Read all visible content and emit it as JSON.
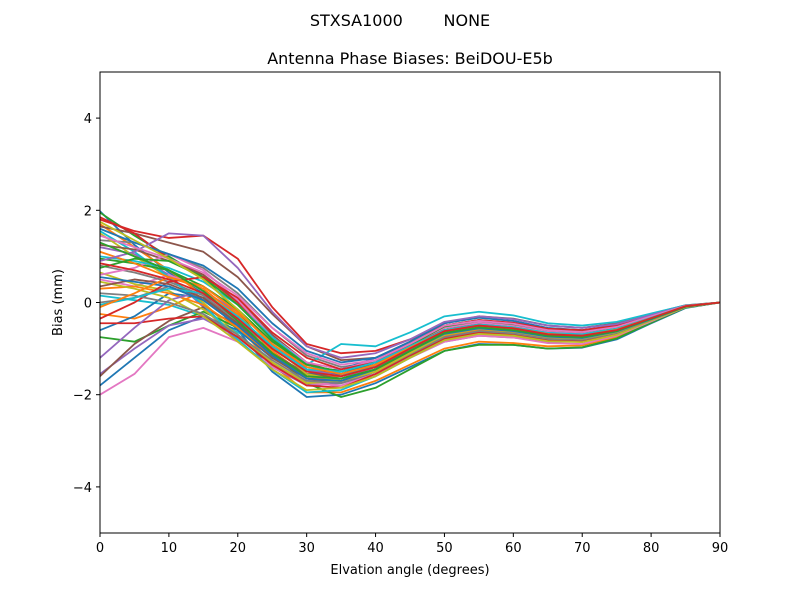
{
  "chart_data": {
    "type": "line",
    "suptitle": "STXSA1000        NONE",
    "title": "Antenna Phase Biases: BeiDOU-E5b",
    "xlabel": "Elvation angle (degrees)",
    "ylabel": "Bias (mm)",
    "xlim": [
      0,
      90
    ],
    "ylim": [
      -5,
      5
    ],
    "xticks": [
      0,
      10,
      20,
      30,
      40,
      50,
      60,
      70,
      80,
      90
    ],
    "yticks": [
      -4,
      -2,
      0,
      2,
      4
    ],
    "grid": false,
    "legend": "none",
    "x": [
      0,
      5,
      10,
      15,
      20,
      25,
      30,
      35,
      40,
      45,
      50,
      55,
      60,
      65,
      70,
      75,
      80,
      85,
      90
    ],
    "series": [
      {
        "color": "#1f77b4",
        "values": [
          1.98,
          1.25,
          0.65,
          0.2,
          -0.6,
          -1.5,
          -2.05,
          -2.0,
          -1.75,
          -1.4,
          -1.05,
          -0.9,
          -0.92,
          -1.0,
          -0.98,
          -0.8,
          -0.45,
          -0.12,
          0.0
        ]
      },
      {
        "color": "#ff7f0e",
        "values": [
          1.7,
          1.2,
          0.7,
          0.15,
          -0.5,
          -1.35,
          -1.95,
          -1.95,
          -1.7,
          -1.35,
          -1.0,
          -0.85,
          -0.88,
          -0.95,
          -0.93,
          -0.75,
          -0.42,
          -0.1,
          0.0
        ]
      },
      {
        "color": "#2ca02c",
        "values": [
          1.95,
          1.45,
          1.0,
          0.55,
          -0.2,
          -1.1,
          -1.75,
          -2.05,
          -1.85,
          -1.45,
          -1.05,
          -0.92,
          -0.92,
          -1.0,
          -0.97,
          -0.78,
          -0.44,
          -0.11,
          0.0
        ]
      },
      {
        "color": "#d62728",
        "values": [
          1.8,
          1.55,
          1.4,
          1.45,
          0.95,
          -0.1,
          -0.9,
          -1.1,
          -1.05,
          -0.8,
          -0.5,
          -0.4,
          -0.45,
          -0.6,
          -0.65,
          -0.55,
          -0.32,
          -0.08,
          0.0
        ]
      },
      {
        "color": "#9467bd",
        "values": [
          1.2,
          1.05,
          0.6,
          -0.1,
          -0.85,
          -1.4,
          -1.8,
          -1.75,
          -1.55,
          -1.2,
          -0.85,
          -0.72,
          -0.76,
          -0.85,
          -0.84,
          -0.68,
          -0.38,
          -0.09,
          0.0
        ]
      },
      {
        "color": "#8c564b",
        "values": [
          1.65,
          1.5,
          1.3,
          1.1,
          0.55,
          -0.25,
          -0.95,
          -1.25,
          -1.2,
          -0.85,
          -0.45,
          -0.3,
          -0.35,
          -0.5,
          -0.55,
          -0.45,
          -0.25,
          -0.06,
          0.0
        ]
      },
      {
        "color": "#e377c2",
        "values": [
          0.5,
          0.35,
          0.6,
          0.3,
          -0.3,
          -1.05,
          -1.65,
          -1.85,
          -1.6,
          -1.2,
          -0.75,
          -0.6,
          -0.68,
          -0.82,
          -0.85,
          -0.7,
          -0.4,
          -0.1,
          0.0
        ]
      },
      {
        "color": "#7f7f7f",
        "values": [
          1.35,
          1.3,
          1.05,
          0.75,
          0.2,
          -0.55,
          -1.15,
          -1.4,
          -1.3,
          -0.95,
          -0.55,
          -0.45,
          -0.5,
          -0.65,
          -0.7,
          -0.58,
          -0.33,
          -0.08,
          0.0
        ]
      },
      {
        "color": "#bcbd22",
        "values": [
          1.5,
          1.0,
          0.55,
          0.0,
          -0.7,
          -1.3,
          -1.75,
          -1.7,
          -1.5,
          -1.15,
          -0.8,
          -0.68,
          -0.72,
          -0.82,
          -0.82,
          -0.66,
          -0.37,
          -0.09,
          0.0
        ]
      },
      {
        "color": "#17becf",
        "values": [
          0.15,
          0.05,
          -0.05,
          -0.3,
          -0.65,
          -1.0,
          -1.35,
          -0.9,
          -0.95,
          -0.65,
          -0.3,
          -0.2,
          -0.28,
          -0.45,
          -0.5,
          -0.42,
          -0.24,
          -0.06,
          0.0
        ]
      },
      {
        "color": "#1f77b4",
        "values": [
          -1.8,
          -1.2,
          -0.6,
          -0.3,
          -0.6,
          -1.2,
          -1.5,
          -1.45,
          -1.2,
          -0.9,
          -0.6,
          -0.5,
          -0.55,
          -0.68,
          -0.7,
          -0.58,
          -0.33,
          -0.08,
          0.0
        ]
      },
      {
        "color": "#ff7f0e",
        "values": [
          -0.25,
          -0.35,
          -0.1,
          0.25,
          -0.25,
          -1.05,
          -1.6,
          -1.7,
          -1.45,
          -1.1,
          -0.75,
          -0.62,
          -0.67,
          -0.8,
          -0.8,
          -0.65,
          -0.37,
          -0.09,
          0.0
        ]
      },
      {
        "color": "#2ca02c",
        "values": [
          -0.75,
          -0.85,
          -0.5,
          -0.2,
          -0.55,
          -1.15,
          -1.6,
          -1.55,
          -1.35,
          -1.0,
          -0.65,
          -0.55,
          -0.6,
          -0.72,
          -0.75,
          -0.62,
          -0.35,
          -0.09,
          0.0
        ]
      },
      {
        "color": "#d62728",
        "values": [
          1.85,
          1.5,
          0.95,
          0.6,
          0.0,
          -0.8,
          -1.45,
          -1.55,
          -1.35,
          -0.95,
          -0.55,
          -0.45,
          -0.5,
          -0.62,
          -0.65,
          -0.54,
          -0.3,
          -0.07,
          0.0
        ]
      },
      {
        "color": "#9467bd",
        "values": [
          -1.55,
          -1.0,
          -0.5,
          -0.35,
          -0.75,
          -1.35,
          -1.7,
          -1.65,
          -1.4,
          -1.05,
          -0.72,
          -0.6,
          -0.65,
          -0.78,
          -0.8,
          -0.65,
          -0.37,
          -0.09,
          0.0
        ]
      },
      {
        "color": "#8c564b",
        "values": [
          -1.6,
          -0.9,
          -0.4,
          -0.1,
          -0.5,
          -1.2,
          -1.65,
          -1.75,
          -1.5,
          -1.1,
          -0.7,
          -0.55,
          -0.62,
          -0.75,
          -0.78,
          -0.64,
          -0.36,
          -0.09,
          0.0
        ]
      },
      {
        "color": "#e377c2",
        "values": [
          -2.0,
          -1.55,
          -0.75,
          -0.55,
          -0.85,
          -1.4,
          -1.75,
          -1.8,
          -1.55,
          -1.2,
          -0.85,
          -0.72,
          -0.76,
          -0.88,
          -0.9,
          -0.72,
          -0.41,
          -0.1,
          0.0
        ]
      },
      {
        "color": "#7f7f7f",
        "values": [
          0.8,
          0.65,
          0.45,
          0.15,
          -0.4,
          -1.0,
          -1.5,
          -1.55,
          -1.35,
          -1.0,
          -0.65,
          -0.52,
          -0.58,
          -0.7,
          -0.72,
          -0.6,
          -0.34,
          -0.08,
          0.0
        ]
      },
      {
        "color": "#bcbd22",
        "values": [
          0.65,
          0.4,
          0.25,
          -0.15,
          -0.7,
          -1.3,
          -1.75,
          -1.7,
          -1.45,
          -1.05,
          -0.68,
          -0.55,
          -0.6,
          -0.72,
          -0.74,
          -0.6,
          -0.34,
          -0.08,
          0.0
        ]
      },
      {
        "color": "#17becf",
        "values": [
          1.55,
          1.1,
          0.55,
          -0.05,
          -0.8,
          -1.45,
          -1.95,
          -1.9,
          -1.6,
          -1.2,
          -0.8,
          -0.65,
          -0.7,
          -0.82,
          -0.84,
          -0.68,
          -0.38,
          -0.09,
          0.0
        ]
      },
      {
        "color": "#1f77b4",
        "values": [
          -0.6,
          -0.3,
          0.2,
          0.1,
          -0.45,
          -1.1,
          -1.55,
          -1.55,
          -1.3,
          -0.95,
          -0.6,
          -0.48,
          -0.55,
          -0.68,
          -0.7,
          -0.58,
          -0.33,
          -0.08,
          0.0
        ]
      },
      {
        "color": "#ff7f0e",
        "values": [
          0.3,
          0.35,
          0.2,
          -0.05,
          -0.55,
          -1.15,
          -1.6,
          -1.6,
          -1.4,
          -1.05,
          -0.7,
          -0.58,
          -0.63,
          -0.75,
          -0.77,
          -0.63,
          -0.36,
          -0.09,
          0.0
        ]
      },
      {
        "color": "#2ca02c",
        "values": [
          0.95,
          0.85,
          0.7,
          0.35,
          -0.15,
          -0.85,
          -1.35,
          -1.5,
          -1.3,
          -0.9,
          -0.5,
          -0.38,
          -0.45,
          -0.58,
          -0.62,
          -0.52,
          -0.3,
          -0.07,
          0.0
        ]
      },
      {
        "color": "#d62728",
        "values": [
          -0.45,
          -0.45,
          -0.35,
          -0.3,
          -0.75,
          -1.35,
          -1.8,
          -1.85,
          -1.55,
          -1.15,
          -0.78,
          -0.65,
          -0.7,
          -0.82,
          -0.84,
          -0.68,
          -0.38,
          -0.09,
          0.0
        ]
      },
      {
        "color": "#9467bd",
        "values": [
          -1.2,
          -0.55,
          0.05,
          0.25,
          -0.2,
          -0.9,
          -1.45,
          -1.6,
          -1.4,
          -1.0,
          -0.62,
          -0.5,
          -0.56,
          -0.68,
          -0.7,
          -0.58,
          -0.33,
          -0.08,
          0.0
        ]
      },
      {
        "color": "#8c564b",
        "values": [
          1.25,
          1.15,
          0.9,
          0.6,
          0.05,
          -0.7,
          -1.3,
          -1.55,
          -1.4,
          -1.0,
          -0.6,
          -0.48,
          -0.54,
          -0.66,
          -0.7,
          -0.58,
          -0.33,
          -0.08,
          0.0
        ]
      },
      {
        "color": "#e377c2",
        "values": [
          0.6,
          0.75,
          1.05,
          0.7,
          0.05,
          -0.75,
          -1.3,
          -1.45,
          -1.25,
          -0.9,
          -0.55,
          -0.44,
          -0.5,
          -0.63,
          -0.66,
          -0.55,
          -0.31,
          -0.08,
          0.0
        ]
      },
      {
        "color": "#7f7f7f",
        "values": [
          0.0,
          0.1,
          0.35,
          0.05,
          -0.5,
          -1.15,
          -1.65,
          -1.7,
          -1.45,
          -1.08,
          -0.72,
          -0.6,
          -0.65,
          -0.77,
          -0.79,
          -0.64,
          -0.36,
          -0.09,
          0.0
        ]
      },
      {
        "color": "#bcbd22",
        "values": [
          0.45,
          0.3,
          0.1,
          -0.3,
          -0.85,
          -1.45,
          -1.9,
          -1.85,
          -1.6,
          -1.2,
          -0.82,
          -0.68,
          -0.72,
          -0.84,
          -0.86,
          -0.7,
          -0.39,
          -0.1,
          0.0
        ]
      },
      {
        "color": "#17becf",
        "values": [
          1.0,
          0.9,
          0.75,
          0.45,
          -0.05,
          -0.75,
          -1.35,
          -1.55,
          -1.4,
          -1.0,
          -0.6,
          -0.48,
          -0.54,
          -0.66,
          -0.7,
          -0.58,
          -0.33,
          -0.08,
          0.0
        ]
      },
      {
        "color": "#1f77b4",
        "values": [
          1.6,
          1.3,
          1.05,
          0.8,
          0.3,
          -0.45,
          -1.05,
          -1.3,
          -1.2,
          -0.85,
          -0.45,
          -0.33,
          -0.4,
          -0.55,
          -0.6,
          -0.5,
          -0.29,
          -0.07,
          0.0
        ]
      },
      {
        "color": "#ff7f0e",
        "values": [
          1.1,
          0.85,
          0.55,
          0.3,
          -0.3,
          -1.05,
          -1.6,
          -1.7,
          -1.5,
          -1.1,
          -0.72,
          -0.6,
          -0.65,
          -0.77,
          -0.8,
          -0.65,
          -0.37,
          -0.09,
          0.0
        ]
      },
      {
        "color": "#2ca02c",
        "values": [
          0.75,
          0.95,
          0.9,
          0.55,
          -0.05,
          -0.8,
          -1.35,
          -1.5,
          -1.3,
          -0.92,
          -0.52,
          -0.4,
          -0.47,
          -0.6,
          -0.64,
          -0.54,
          -0.31,
          -0.07,
          0.0
        ]
      },
      {
        "color": "#d62728",
        "values": [
          -0.35,
          0.0,
          0.45,
          0.55,
          0.1,
          -0.65,
          -1.2,
          -1.45,
          -1.3,
          -0.9,
          -0.5,
          -0.38,
          -0.44,
          -0.57,
          -0.6,
          -0.5,
          -0.29,
          -0.07,
          0.0
        ]
      },
      {
        "color": "#9467bd",
        "values": [
          0.9,
          1.1,
          1.5,
          1.45,
          0.75,
          -0.2,
          -0.95,
          -1.2,
          -1.1,
          -0.8,
          -0.42,
          -0.3,
          -0.36,
          -0.5,
          -0.55,
          -0.47,
          -0.27,
          -0.07,
          0.0
        ]
      },
      {
        "color": "#8c564b",
        "values": [
          0.35,
          0.5,
          0.4,
          0.1,
          -0.45,
          -1.1,
          -1.55,
          -1.65,
          -1.45,
          -1.05,
          -0.68,
          -0.56,
          -0.62,
          -0.74,
          -0.77,
          -0.63,
          -0.36,
          -0.09,
          0.0
        ]
      },
      {
        "color": "#e377c2",
        "values": [
          1.45,
          1.2,
          0.95,
          0.65,
          0.15,
          -0.55,
          -1.1,
          -1.35,
          -1.25,
          -0.9,
          -0.5,
          -0.4,
          -0.46,
          -0.6,
          -0.64,
          -0.53,
          -0.3,
          -0.07,
          0.0
        ]
      },
      {
        "color": "#7f7f7f",
        "values": [
          0.2,
          0.15,
          0.0,
          -0.25,
          -0.7,
          -1.25,
          -1.7,
          -1.75,
          -1.5,
          -1.12,
          -0.75,
          -0.62,
          -0.67,
          -0.79,
          -0.81,
          -0.66,
          -0.37,
          -0.09,
          0.0
        ]
      },
      {
        "color": "#bcbd22",
        "values": [
          1.75,
          1.35,
          0.95,
          0.5,
          -0.15,
          -0.95,
          -1.55,
          -1.7,
          -1.5,
          -1.1,
          -0.7,
          -0.57,
          -0.63,
          -0.75,
          -0.78,
          -0.64,
          -0.36,
          -0.09,
          0.0
        ]
      },
      {
        "color": "#17becf",
        "values": [
          -0.05,
          0.1,
          0.3,
          0.2,
          -0.3,
          -0.95,
          -1.45,
          -1.5,
          -1.3,
          -0.95,
          -0.6,
          -0.48,
          -0.54,
          -0.66,
          -0.69,
          -0.57,
          -0.33,
          -0.08,
          0.0
        ]
      },
      {
        "color": "#1f77b4",
        "values": [
          0.55,
          0.45,
          0.35,
          0.05,
          -0.5,
          -1.15,
          -1.65,
          -1.7,
          -1.45,
          -1.05,
          -0.68,
          -0.56,
          -0.62,
          -0.74,
          -0.77,
          -0.63,
          -0.36,
          -0.09,
          0.0
        ]
      },
      {
        "color": "#ff7f0e",
        "values": [
          -0.1,
          0.2,
          0.55,
          0.35,
          -0.2,
          -0.9,
          -1.4,
          -1.55,
          -1.35,
          -0.98,
          -0.62,
          -0.5,
          -0.56,
          -0.68,
          -0.72,
          -0.59,
          -0.34,
          -0.08,
          0.0
        ]
      },
      {
        "color": "#2ca02c",
        "values": [
          1.3,
          1.0,
          0.7,
          0.25,
          -0.4,
          -1.1,
          -1.6,
          -1.65,
          -1.45,
          -1.05,
          -0.66,
          -0.54,
          -0.6,
          -0.72,
          -0.75,
          -0.62,
          -0.35,
          -0.09,
          0.0
        ]
      },
      {
        "color": "#d62728",
        "values": [
          0.85,
          0.7,
          0.5,
          0.2,
          -0.35,
          -1.0,
          -1.5,
          -1.6,
          -1.4,
          -1.0,
          -0.62,
          -0.5,
          -0.56,
          -0.69,
          -0.72,
          -0.6,
          -0.34,
          -0.08,
          0.0
        ]
      }
    ]
  }
}
